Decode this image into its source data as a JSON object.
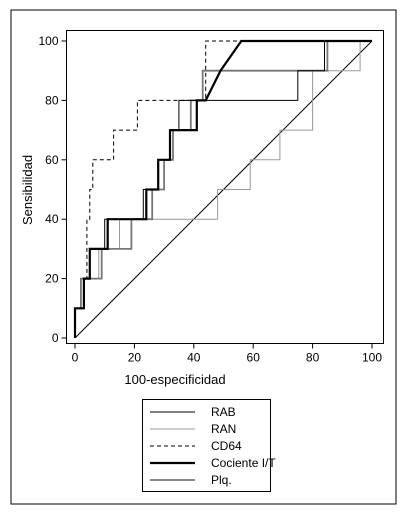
{
  "chart_data": {
    "type": "line",
    "title": "",
    "xlabel": "100-especificidad",
    "ylabel": "Sensibilidad",
    "xlim": [
      0,
      100
    ],
    "ylim": [
      0,
      100
    ],
    "xticks": [
      0,
      20,
      40,
      60,
      80,
      100
    ],
    "yticks": [
      0,
      20,
      40,
      60,
      80,
      100
    ],
    "grid": false,
    "legend_position": "bottom",
    "reference_line": {
      "x": [
        0,
        100
      ],
      "y": [
        0,
        100
      ],
      "color": "#000000"
    },
    "series": [
      {
        "name": "RAB",
        "color": "#000000",
        "style": "thin-solid",
        "x": [
          0,
          0,
          3,
          3,
          5,
          5,
          8,
          8,
          10,
          10,
          12,
          12,
          15,
          15,
          19,
          19,
          23,
          23,
          25,
          25,
          28,
          28,
          32,
          32,
          35,
          35,
          40,
          40,
          42,
          42,
          44,
          44,
          75,
          75,
          84,
          84,
          100
        ],
        "y": [
          0,
          10,
          10,
          20,
          20,
          30,
          30,
          30,
          30,
          40,
          40,
          40,
          40,
          40,
          40,
          40,
          40,
          50,
          50,
          50,
          50,
          60,
          60,
          70,
          70,
          80,
          80,
          80,
          80,
          80,
          80,
          80,
          80,
          90,
          90,
          100,
          100
        ]
      },
      {
        "name": "RAN",
        "color": "#999999",
        "style": "thin-solid",
        "x": [
          0,
          0,
          2,
          2,
          4,
          4,
          8,
          8,
          10,
          10,
          15,
          15,
          21,
          21,
          48,
          48,
          59,
          59,
          69,
          69,
          80,
          80,
          96,
          96,
          100
        ],
        "y": [
          0,
          10,
          10,
          20,
          20,
          20,
          20,
          30,
          30,
          30,
          30,
          40,
          40,
          40,
          40,
          50,
          50,
          60,
          60,
          70,
          70,
          90,
          90,
          100,
          100
        ]
      },
      {
        "name": "CD64",
        "color": "#000000",
        "style": "dashed",
        "x": [
          0,
          0,
          3,
          3,
          4,
          4,
          5,
          5,
          6,
          6,
          13,
          13,
          21,
          21,
          28,
          28,
          38,
          38,
          44,
          44,
          100
        ],
        "y": [
          0,
          10,
          10,
          20,
          20,
          40,
          40,
          50,
          50,
          60,
          60,
          70,
          70,
          80,
          80,
          80,
          80,
          80,
          80,
          100,
          100
        ]
      },
      {
        "name": "Cociente I/T",
        "color": "#000000",
        "style": "thick-solid",
        "x": [
          0,
          0,
          3,
          3,
          5,
          5,
          11,
          11,
          18,
          18,
          24,
          24,
          28,
          28,
          32,
          32,
          36,
          36,
          41,
          41,
          44,
          44,
          49,
          56,
          100
        ],
        "y": [
          0,
          10,
          10,
          20,
          20,
          30,
          30,
          40,
          40,
          40,
          40,
          50,
          50,
          60,
          60,
          70,
          70,
          70,
          70,
          80,
          80,
          80,
          90,
          100,
          100
        ]
      },
      {
        "name": "Plq.",
        "color": "#777777",
        "style": "medium-solid",
        "x": [
          0,
          0,
          2,
          2,
          6,
          6,
          9,
          9,
          13,
          13,
          19,
          19,
          26,
          26,
          30,
          30,
          33,
          33,
          39,
          39,
          43,
          43,
          85,
          85,
          100
        ],
        "y": [
          0,
          10,
          10,
          20,
          20,
          20,
          20,
          30,
          30,
          30,
          30,
          40,
          40,
          50,
          50,
          60,
          60,
          70,
          70,
          80,
          80,
          90,
          90,
          100,
          100
        ]
      }
    ]
  }
}
